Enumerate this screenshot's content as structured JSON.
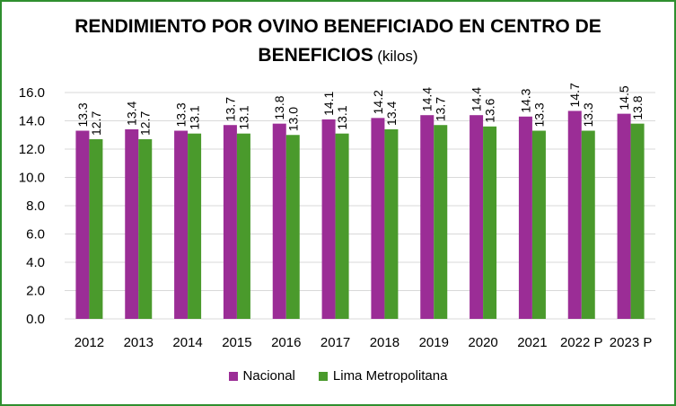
{
  "title_line1": "RENDIMIENTO POR OVINO BENEFICIADO EN CENTRO DE",
  "title_line2": "BENEFICIOS",
  "title_unit": "(kilos)",
  "chart_data": {
    "type": "bar",
    "title": "RENDIMIENTO POR OVINO BENEFICIADO EN CENTRO DE BENEFICIOS (kilos)",
    "categories": [
      "2012",
      "2013",
      "2014",
      "2015",
      "2016",
      "2017",
      "2018",
      "2019",
      "2020",
      "2021",
      "2022 P",
      "2023 P"
    ],
    "series": [
      {
        "name": "Nacional",
        "color": "#9b2d96",
        "values": [
          13.3,
          13.4,
          13.3,
          13.7,
          13.8,
          14.1,
          14.2,
          14.4,
          14.4,
          14.3,
          14.7,
          14.5
        ],
        "labels": [
          "13.3",
          "13.4",
          "13.3",
          "13.7",
          "13.8",
          "14.1",
          "14.2",
          "14.4",
          "14.4",
          "14.3",
          "14.7",
          "14.5"
        ]
      },
      {
        "name": "Lima Metropolitana",
        "color": "#4a9a2c",
        "values": [
          12.7,
          12.7,
          13.1,
          13.1,
          13.0,
          13.1,
          13.4,
          13.7,
          13.6,
          13.3,
          13.3,
          13.8
        ],
        "labels": [
          "12.7",
          "12.7",
          "13.1",
          "13.1",
          "13.0",
          "13.1",
          "13.4",
          "13.7",
          "13.6",
          "13.3",
          "13.3",
          "13.8"
        ]
      }
    ],
    "ylim": [
      0,
      16
    ],
    "yticks": [
      "0.0",
      "2.0",
      "4.0",
      "6.0",
      "8.0",
      "10.0",
      "12.0",
      "14.0",
      "16.0"
    ],
    "grid": true,
    "legend": "bottom",
    "data_labels": "rotated-vertical"
  }
}
